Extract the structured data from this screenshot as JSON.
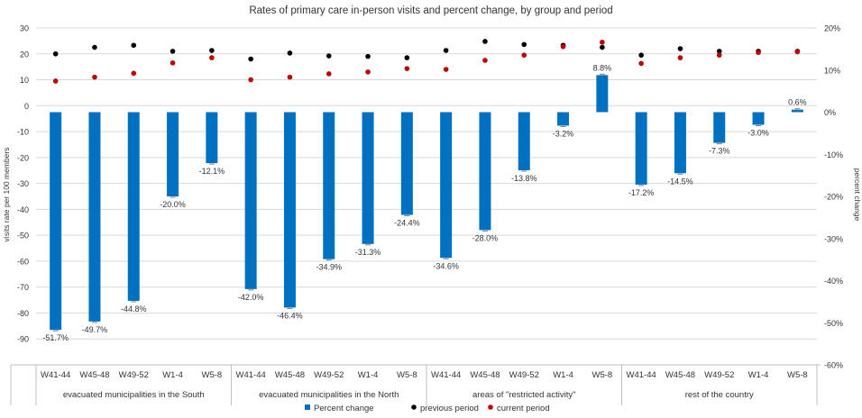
{
  "chart_data": {
    "type": "bar",
    "title": "Rates of primary care in-person visits and percent change, by group and period",
    "ylabel_left": "visits rate per 100 members",
    "ylabel_right": "percent change",
    "ylim_left": [
      -100,
      30
    ],
    "ylim_right": [
      -60,
      20
    ],
    "left_ticks": [
      30,
      20,
      10,
      0,
      -10,
      -20,
      -30,
      -40,
      -50,
      -60,
      -70,
      -80,
      -90
    ],
    "right_ticks": [
      20,
      10,
      0,
      -10,
      -20,
      -30,
      -40,
      -50,
      -60
    ],
    "right_tick_labels": [
      "20%",
      "10%",
      "0%",
      "-10%",
      "-20%",
      "-30%",
      "-40%",
      "-50%",
      "-60%"
    ],
    "groups": [
      "evacuated municipalities in the South",
      "evacuated municipalities in the North",
      "areas of \"restricted activity\"",
      "rest of the country"
    ],
    "periods": [
      "W41-44",
      "W45-48",
      "W49-52",
      "W1-4",
      "W5-8"
    ],
    "categories": [
      "W41-44",
      "W45-48",
      "W49-52",
      "W1-4",
      "W5-8",
      "W41-44",
      "W45-48",
      "W49-52",
      "W1-4",
      "W5-8",
      "W41-44",
      "W45-48",
      "W49-52",
      "W1-4",
      "W5-8",
      "W41-44",
      "W45-48",
      "W49-52",
      "W1-4",
      "W5-8"
    ],
    "series": [
      {
        "name": "Percent change",
        "color": "#0070C0",
        "axis": "right",
        "values": [
          -51.7,
          -49.7,
          -44.8,
          -20.0,
          -12.1,
          -42.0,
          -46.4,
          -34.9,
          -31.3,
          -24.4,
          -34.6,
          -28.0,
          -13.8,
          -3.2,
          8.8,
          -17.2,
          -14.5,
          -7.3,
          -3.0,
          0.6
        ],
        "labels": [
          "-51.7%",
          "-49.7%",
          "-44.8%",
          "-20.0%",
          "-12.1%",
          "-42.0%",
          "-46.4%",
          "-34.9%",
          "-31.3%",
          "-24.4%",
          "-34.6%",
          "-28.0%",
          "-13.8%",
          "-3.2%",
          "8.8%",
          "-17.2%",
          "-14.5%",
          "-7.3%",
          "-3.0%",
          "0.6%"
        ]
      },
      {
        "name": "previous period",
        "color": "#000000",
        "axis": "left",
        "values": [
          20,
          22.5,
          23.3,
          21,
          21.3,
          18,
          20.3,
          19.2,
          19,
          18.5,
          21.3,
          24.8,
          23.6,
          23.3,
          22.5,
          19.5,
          22,
          21,
          21,
          21
        ]
      },
      {
        "name": "current period",
        "color": "#C00000",
        "axis": "left",
        "values": [
          9.5,
          11,
          12.5,
          16.5,
          18.5,
          10,
          11,
          12.3,
          13,
          14.3,
          14,
          17.5,
          19.5,
          22.8,
          24.5,
          16.3,
          18.5,
          19.5,
          20.5,
          20.8
        ]
      }
    ],
    "legend": [
      "Percent change",
      "previous period",
      "current period"
    ],
    "legend_position": "bottom"
  }
}
